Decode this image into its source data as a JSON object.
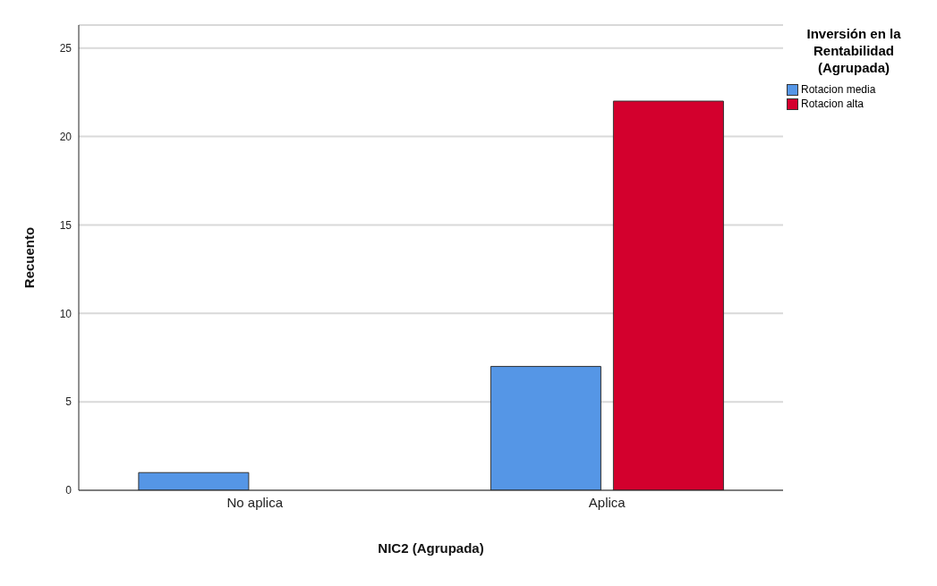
{
  "chart_data": {
    "type": "bar",
    "xlabel": "NIC2 (Agrupada)",
    "ylabel": "Recuento",
    "legend_title": "Inversión en la Rentabilidad (Agrupada)",
    "categories": [
      "No aplica",
      "Aplica"
    ],
    "series": [
      {
        "name": "Rotacion media",
        "color": "#5596e6",
        "values": [
          1,
          7
        ]
      },
      {
        "name": "Rotacion alta",
        "color": "#d3002d",
        "values": [
          0,
          22
        ]
      }
    ],
    "ylim": [
      0,
      26.3
    ],
    "yticks": [
      0,
      5,
      10,
      15,
      20,
      25
    ],
    "grid": "y",
    "legend": "top right"
  }
}
